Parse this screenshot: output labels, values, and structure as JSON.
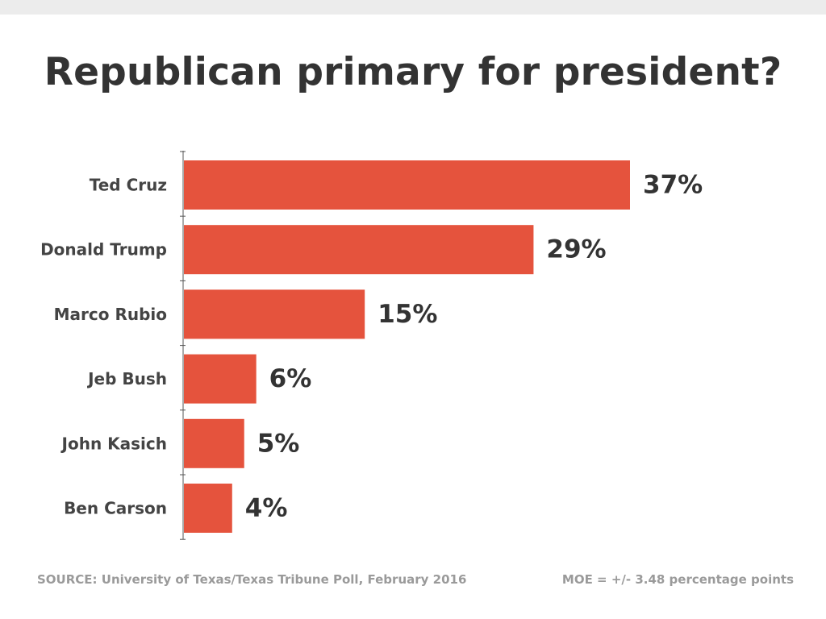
{
  "title": "Republican primary for president?",
  "chart_data": {
    "type": "bar",
    "orientation": "horizontal",
    "title": "Republican primary for president?",
    "categories": [
      "Ted Cruz",
      "Donald Trump",
      "Marco Rubio",
      "Jeb Bush",
      "John Kasich",
      "Ben Carson"
    ],
    "values": [
      37,
      29,
      15,
      6,
      5,
      4
    ],
    "value_labels": [
      "37%",
      "29%",
      "15%",
      "6%",
      "5%",
      "4%"
    ],
    "unit": "%",
    "xlabel": "",
    "ylabel": "",
    "xlim": [
      0,
      37
    ],
    "grid": false,
    "legend": "none",
    "bar_color": "#e5533d"
  },
  "footer": {
    "source": "SOURCE: University of Texas/Texas Tribune Poll, February 2016",
    "moe": "MOE = +/- 3.48 percentage points"
  },
  "colors": {
    "bar": "#e5533d",
    "title": "#333333",
    "footer": "#9a9a9a",
    "top_strip": "#ececec"
  }
}
